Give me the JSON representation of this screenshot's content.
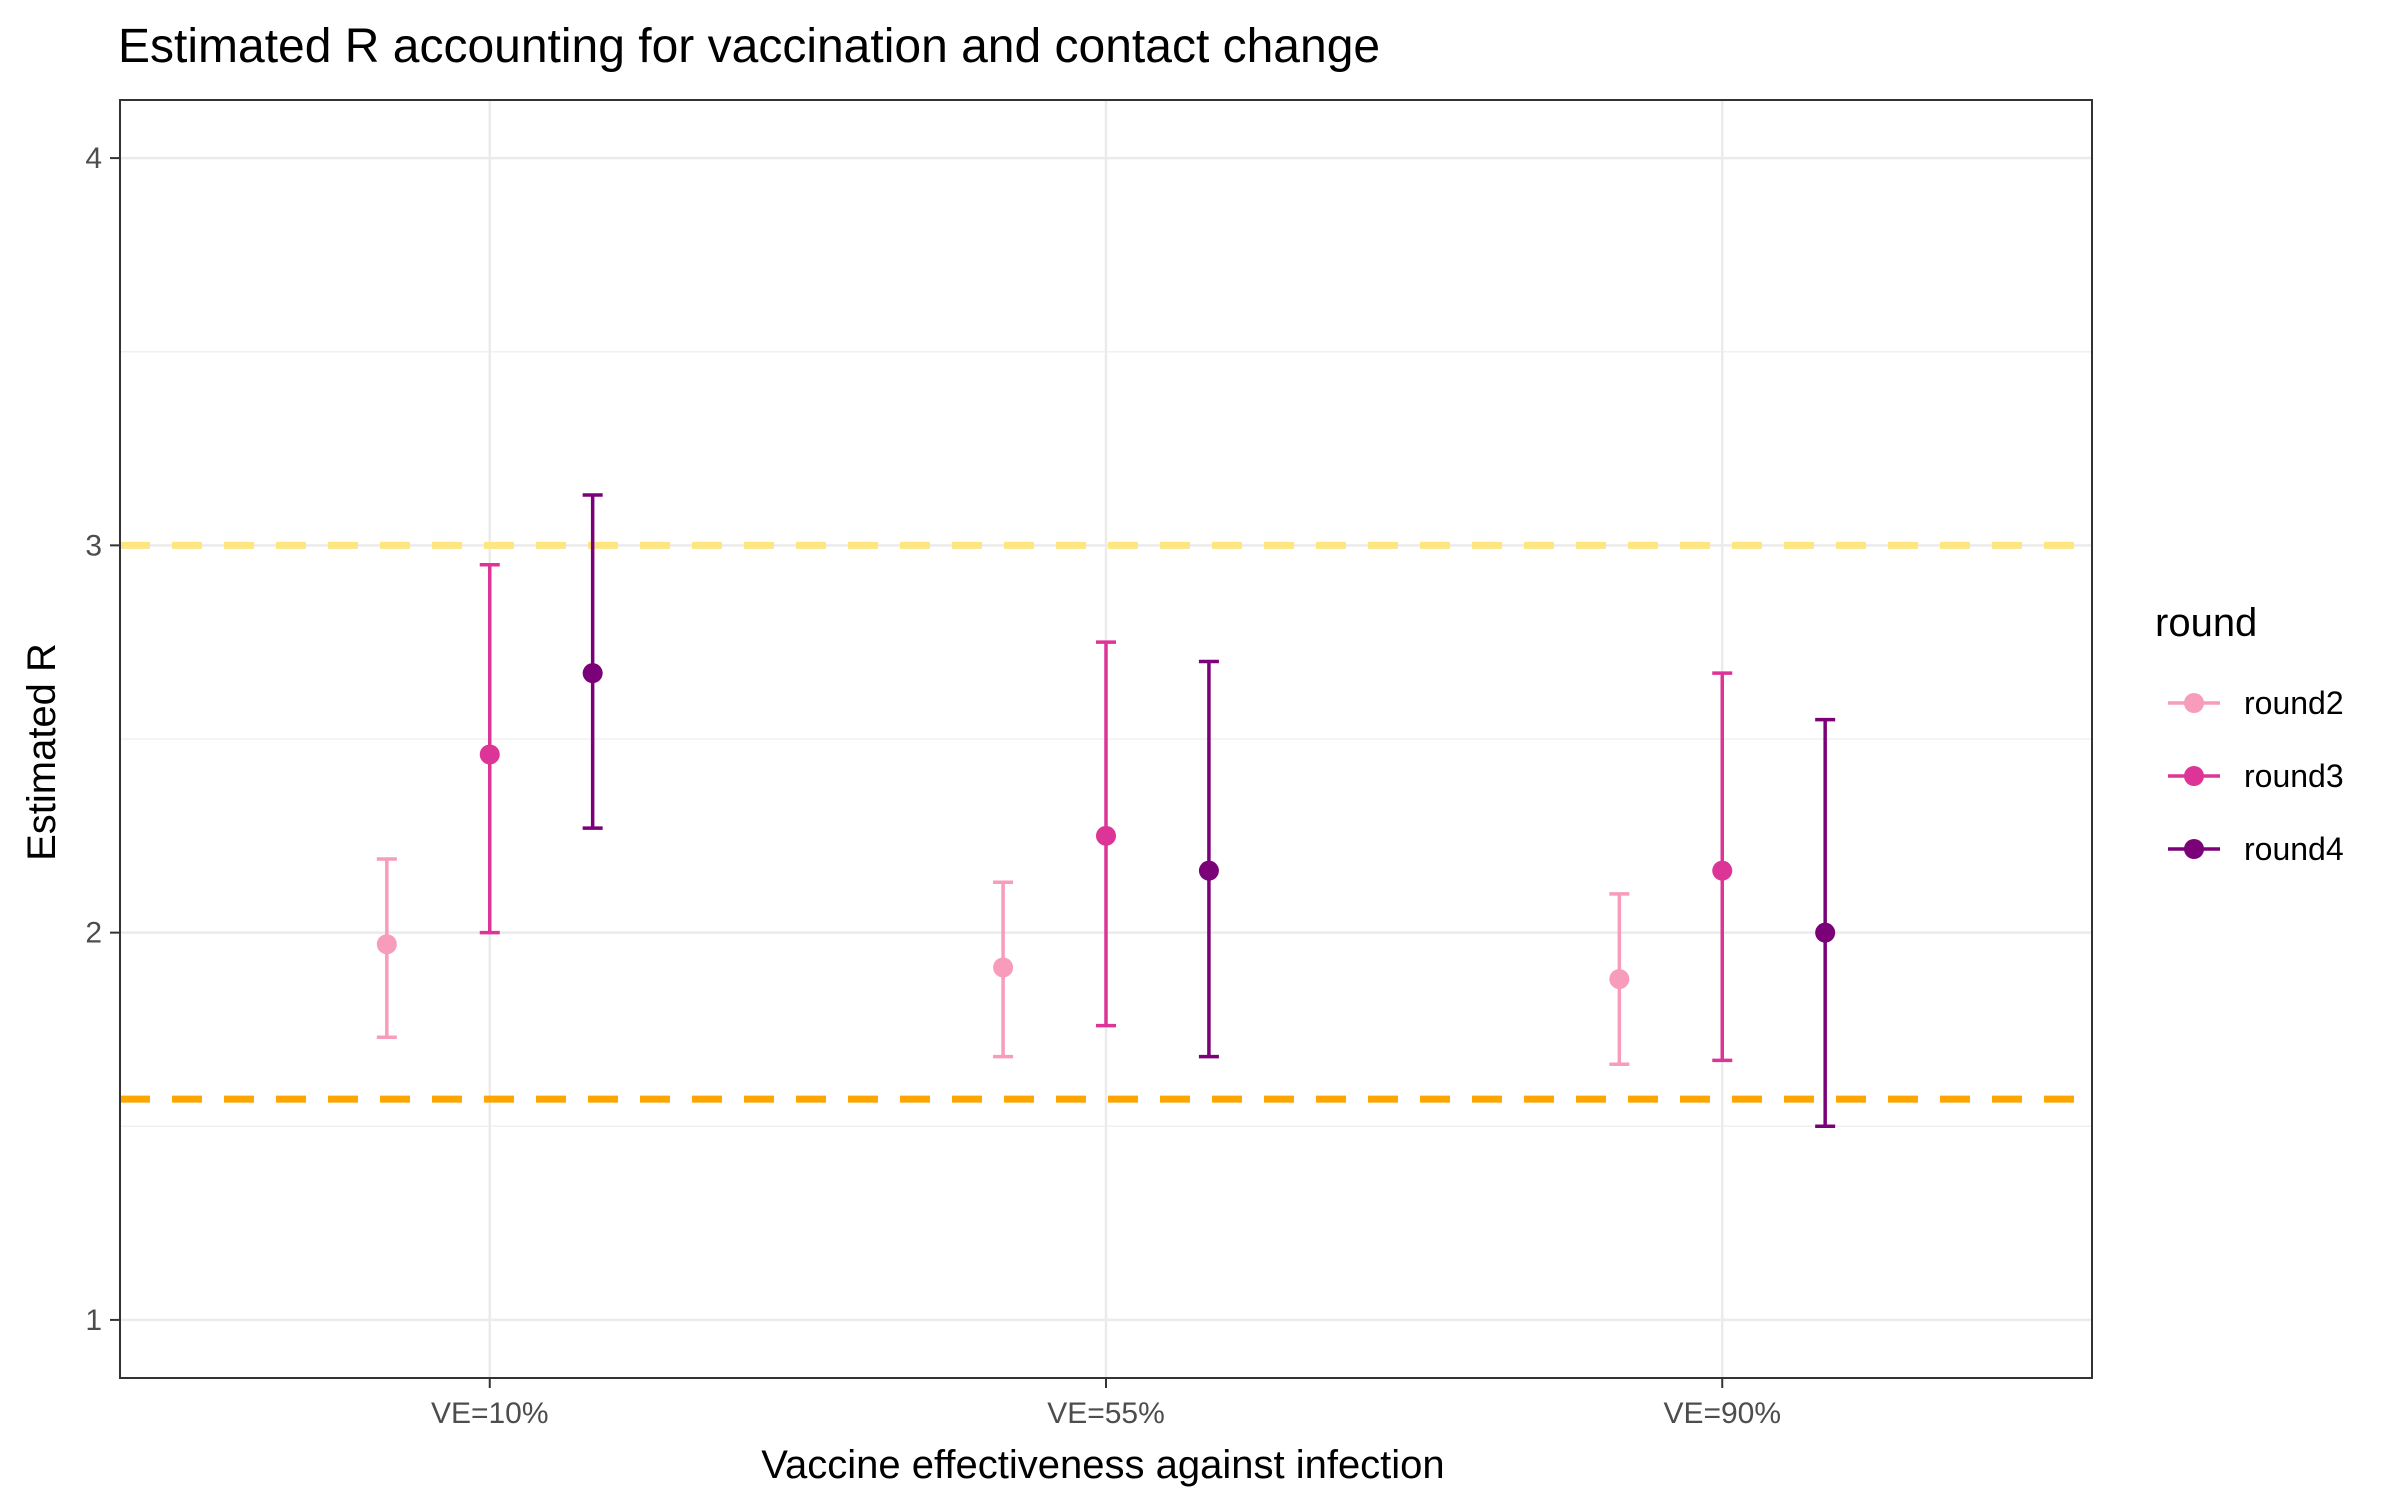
{
  "chart_data": {
    "type": "scatter",
    "title": "Estimated R accounting for vaccination and contact change",
    "xlabel": "Vaccine effectiveness against infection",
    "ylabel": "Estimated R",
    "categories": [
      "VE=10%",
      "VE=55%",
      "VE=90%"
    ],
    "ylim": [
      0.85,
      4.15
    ],
    "yticks": [
      1,
      2,
      3,
      4
    ],
    "grid": true,
    "legend": {
      "title": "round",
      "placement": "right"
    },
    "reference_lines": [
      {
        "y": 3.0,
        "color": "#FFE680",
        "style": "dashed"
      },
      {
        "y": 1.57,
        "color": "#FFA500",
        "style": "dashed"
      }
    ],
    "series": [
      {
        "name": "round2",
        "color": "#F79CBA",
        "offset": -0.167,
        "values": [
          1.97,
          1.91,
          1.88
        ],
        "lower": [
          1.73,
          1.68,
          1.66
        ],
        "upper": [
          2.19,
          2.13,
          2.1
        ]
      },
      {
        "name": "round3",
        "color": "#DD3497",
        "offset": 0.0,
        "values": [
          2.46,
          2.25,
          2.16
        ],
        "lower": [
          2.0,
          1.76,
          1.67
        ],
        "upper": [
          2.95,
          2.75,
          2.67
        ]
      },
      {
        "name": "round4",
        "color": "#7A0177",
        "offset": 0.167,
        "values": [
          2.67,
          2.16,
          2.0
        ],
        "lower": [
          2.27,
          1.68,
          1.5
        ],
        "upper": [
          3.13,
          2.7,
          2.55
        ]
      }
    ]
  }
}
